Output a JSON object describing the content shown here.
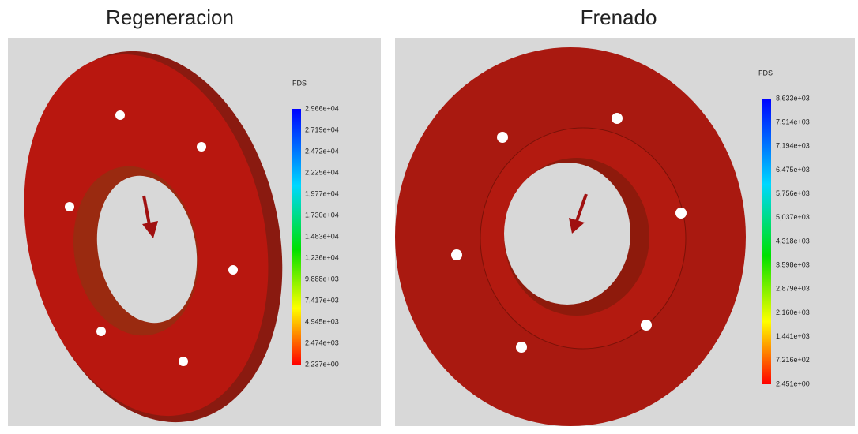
{
  "panels": [
    {
      "title": "Regeneracion",
      "legend_title": "FDS",
      "legend_labels": [
        "2,966e+04",
        "2,719e+04",
        "2,472e+04",
        "2,225e+04",
        "1,977e+04",
        "1,730e+04",
        "1,483e+04",
        "1,236e+04",
        "9,888e+03",
        "7,417e+03",
        "4,945e+03",
        "2,474e+03",
        "2,237e+00"
      ]
    },
    {
      "title": "Frenado",
      "legend_title": "FDS",
      "legend_labels": [
        "8,633e+03",
        "7,914e+03",
        "7,194e+03",
        "6,475e+03",
        "5,756e+03",
        "5,037e+03",
        "4,318e+03",
        "3,598e+03",
        "2,879e+03",
        "2,160e+03",
        "1,441e+03",
        "7,216e+02",
        "2,451e+00"
      ]
    }
  ]
}
